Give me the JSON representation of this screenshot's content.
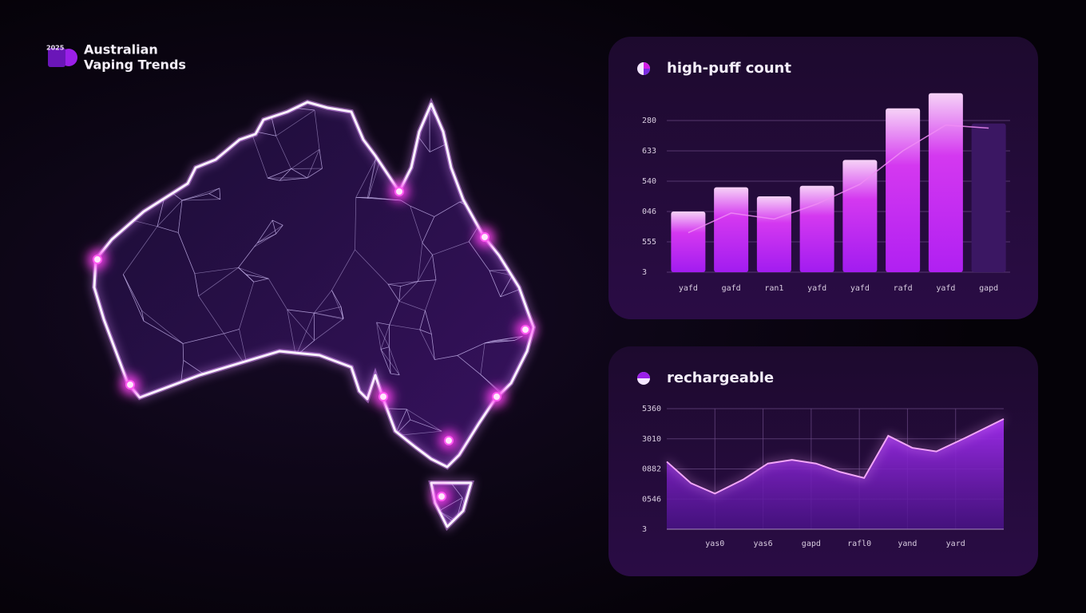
{
  "header": {
    "badge": "2025",
    "title_lines": [
      "Australian",
      "Vaping Trends"
    ]
  },
  "chart_data": [
    {
      "type": "bar",
      "title": "high-puff count",
      "categories": [
        "yafd",
        "gafd",
        "ran1",
        "yafd",
        "yafd",
        "rafd",
        "yafd",
        "gapd"
      ],
      "series": [
        {
          "colors": [
            "#a21cf0",
            "#a21cf0",
            "#a21cf0",
            "#a21cf0",
            "#a21cf0",
            "#b020f2",
            "#b020f2",
            "#3b1763"
          ],
          "values": [
            2.0,
            2.8,
            2.5,
            2.85,
            3.7,
            5.4,
            5.9,
            4.9
          ]
        },
        {
          "type": "line",
          "color": "#f08cf5",
          "values": [
            1.3,
            1.95,
            1.75,
            2.25,
            2.9,
            4.0,
            4.85,
            4.75
          ]
        }
      ],
      "ylim": [
        0,
        6
      ],
      "yticks": [
        {
          "value": 0,
          "label": "3"
        },
        {
          "value": 1,
          "label": "555"
        },
        {
          "value": 2,
          "label": "046"
        },
        {
          "value": 3,
          "label": "540"
        },
        {
          "value": 4,
          "label": "633"
        },
        {
          "value": 5,
          "label": "280"
        }
      ],
      "grid": true
    },
    {
      "type": "area",
      "title": "rechargeable",
      "x": [
        0,
        0.5,
        1,
        1.6,
        2.1,
        2.6,
        3.1,
        3.6,
        4.1,
        4.6,
        5.1,
        5.6,
        6.2,
        7
      ],
      "series": [
        {
          "color": "#9b24e6",
          "values": [
            2.24,
            1.53,
            1.18,
            1.66,
            2.18,
            2.3,
            2.18,
            1.9,
            1.7,
            3.1,
            2.7,
            2.58,
            3.03,
            3.66
          ]
        }
      ],
      "xlim": [
        0,
        7
      ],
      "xticks": [
        {
          "value": 1,
          "label": "yas0"
        },
        {
          "value": 2,
          "label": "yas6"
        },
        {
          "value": 3,
          "label": "gapd"
        },
        {
          "value": 4,
          "label": "rafl0"
        },
        {
          "value": 5,
          "label": "yand"
        },
        {
          "value": 6,
          "label": "yard"
        }
      ],
      "ylim": [
        0,
        4
      ],
      "yticks": [
        {
          "value": 0,
          "label": "3"
        },
        {
          "value": 1,
          "label": "0546"
        },
        {
          "value": 2,
          "label": "0882"
        },
        {
          "value": 3,
          "label": "3010"
        },
        {
          "value": 4,
          "label": "5360"
        }
      ],
      "grid": true
    }
  ]
}
